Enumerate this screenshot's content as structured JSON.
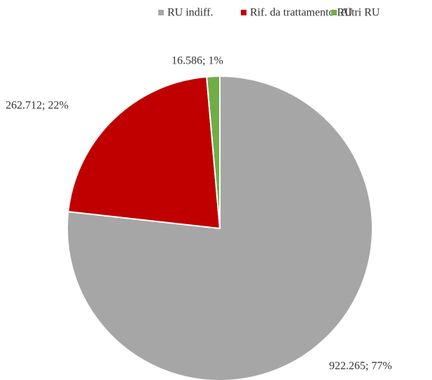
{
  "chart_data": {
    "type": "pie",
    "categories": [
      "RU indiff.",
      "Rif. da trattamento RU",
      "Altri RU"
    ],
    "values": [
      922.265,
      262.712,
      16.586
    ],
    "value_labels": [
      "922.265; 77%",
      "262.712; 22%",
      "16.586; 1%"
    ],
    "colors": [
      "#a6a6a6",
      "#c00000",
      "#70ad47"
    ],
    "legend": "top"
  }
}
